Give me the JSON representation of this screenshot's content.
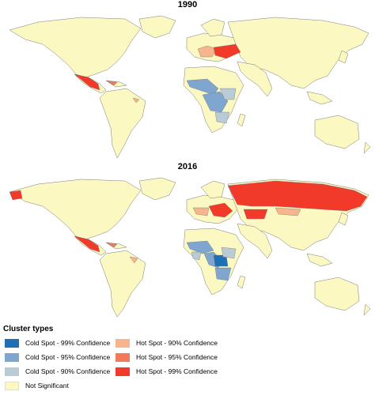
{
  "maps": [
    {
      "year_label": "1990"
    },
    {
      "year_label": "2016"
    }
  ],
  "legend": {
    "title": "Cluster types",
    "items": [
      {
        "label": "Cold Spot - 99% Confidence",
        "color": "#1f6fb4"
      },
      {
        "label": "Cold Spot - 95% Confidence",
        "color": "#7ea6cf"
      },
      {
        "label": "Cold Spot - 90% Confidence",
        "color": "#b9cbd5"
      },
      {
        "label": "Hot Spot - 90% Confidence",
        "color": "#f6b58c"
      },
      {
        "label": "Hot Spot - 95% Confidence",
        "color": "#f2795a"
      },
      {
        "label": "Hot Spot - 99% Confidence",
        "color": "#f23a2b"
      },
      {
        "label": "Not Significant",
        "color": "#fbf8c2"
      }
    ]
  },
  "colors": {
    "land": "#fbf8c2",
    "border": "#7a7a7a",
    "water": "#ffffff"
  }
}
